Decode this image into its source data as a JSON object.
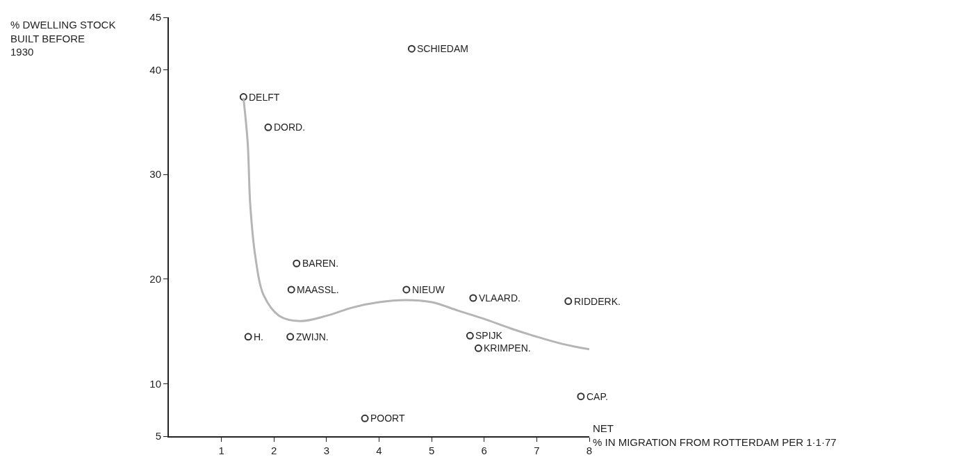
{
  "chart_data": {
    "type": "scatter",
    "ylabel": "% DWELLING STOCK BUILT BEFORE 1930",
    "xlabel": "NET % IN MIGRATION FROM ROTTERDAM PER 1·1·77",
    "xlim": [
      0,
      8
    ],
    "xticks": [
      1,
      2,
      3,
      4,
      5,
      6,
      7,
      8
    ],
    "ylim": [
      5,
      45
    ],
    "yticks": [
      5,
      10,
      20,
      30,
      40,
      45
    ],
    "grid": false,
    "marker": "circle",
    "series": [
      {
        "color": "#333333",
        "x": [
          4.62,
          1.42,
          1.89,
          2.43,
          2.33,
          4.52,
          5.79,
          7.6,
          1.51,
          2.31,
          5.73,
          5.89,
          7.84,
          3.73
        ],
        "values": [
          42,
          37.4,
          34.5,
          21.5,
          19,
          19,
          18.2,
          17.9,
          14.5,
          14.5,
          14.6,
          13.4,
          8.8,
          6.7
        ]
      },
      {
        "type": "line",
        "color": "#b5b5b5",
        "marker": "none",
        "x": [
          1.42,
          1.5,
          1.55,
          1.65,
          1.8,
          2.1,
          2.5,
          3,
          3.5,
          4,
          4.5,
          5,
          5.5,
          6,
          6.5,
          7,
          7.5,
          8
        ],
        "values": [
          37.3,
          33,
          27,
          22,
          18.5,
          16.5,
          16,
          16.5,
          17.3,
          17.8,
          18,
          17.8,
          17,
          16.2,
          15.3,
          14.5,
          13.8,
          13.3
        ]
      }
    ],
    "annotations": [
      {
        "text": "SCHIEDAM",
        "x": 4.62,
        "y": 42
      },
      {
        "text": "DELFT",
        "x": 1.42,
        "y": 37.4
      },
      {
        "text": "DORD.",
        "x": 1.89,
        "y": 34.5
      },
      {
        "text": "BAREN.",
        "x": 2.43,
        "y": 21.5
      },
      {
        "text": "MAASSL.",
        "x": 2.33,
        "y": 19
      },
      {
        "text": "NIEUW",
        "x": 4.52,
        "y": 19
      },
      {
        "text": "VLAARD.",
        "x": 5.79,
        "y": 18.2
      },
      {
        "text": "RIDDERK.",
        "x": 7.6,
        "y": 17.9
      },
      {
        "text": "H.",
        "x": 1.51,
        "y": 14.5
      },
      {
        "text": "ZWIJN.",
        "x": 2.31,
        "y": 14.5
      },
      {
        "text": "SPIJK",
        "x": 5.73,
        "y": 14.6
      },
      {
        "text": "KRIMPEN.",
        "x": 5.89,
        "y": 13.4
      },
      {
        "text": "CAP.",
        "x": 7.84,
        "y": 8.8
      },
      {
        "text": "POORT",
        "x": 3.73,
        "y": 6.7
      }
    ]
  }
}
